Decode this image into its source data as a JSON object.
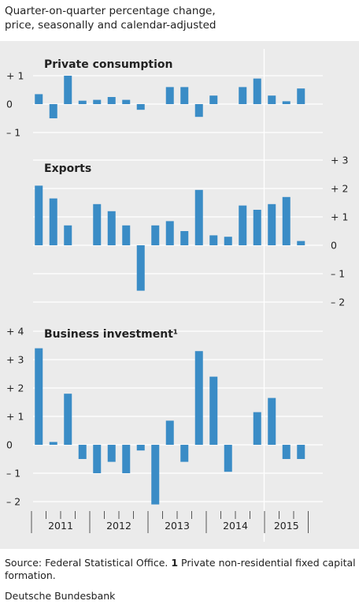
{
  "subtitle_line1": "Quarter-on-quarter percentage change,",
  "subtitle_line2": "price, seasonally and calendar-adjusted",
  "chart_data": [
    {
      "type": "bar",
      "title": "Private consumption",
      "axis_side": "left",
      "ylim": [
        -1.2,
        1.25
      ],
      "ticks": [
        {
          "v": 1,
          "label": "+ 1"
        },
        {
          "v": 0,
          "label": "0"
        },
        {
          "v": -1,
          "label": "– 1"
        }
      ],
      "values": [
        0.35,
        -0.5,
        1.0,
        0.12,
        0.15,
        0.25,
        0.15,
        -0.2,
        null,
        0.6,
        0.6,
        -0.45,
        0.3,
        null,
        0.6,
        0.9,
        0.3,
        0.1,
        0.55
      ]
    },
    {
      "type": "bar",
      "title": "Exports",
      "axis_side": "right",
      "ylim": [
        -2.2,
        3.2
      ],
      "ticks": [
        {
          "v": 3,
          "label": "+ 3"
        },
        {
          "v": 2,
          "label": "+ 2"
        },
        {
          "v": 1,
          "label": "+ 1"
        },
        {
          "v": 0,
          "label": "0"
        },
        {
          "v": -1,
          "label": "– 1"
        },
        {
          "v": -2,
          "label": "– 2"
        }
      ],
      "values": [
        2.1,
        1.65,
        0.7,
        null,
        1.45,
        1.2,
        0.7,
        -1.6,
        0.7,
        0.85,
        0.5,
        1.95,
        0.35,
        0.3,
        1.4,
        1.25,
        1.45,
        1.7,
        0.15
      ]
    },
    {
      "type": "bar",
      "title": "Business investment¹",
      "axis_side": "left",
      "ylim": [
        -2.3,
        4.2
      ],
      "ticks": [
        {
          "v": 4,
          "label": "+ 4"
        },
        {
          "v": 3,
          "label": "+ 3"
        },
        {
          "v": 2,
          "label": "+ 2"
        },
        {
          "v": 1,
          "label": "+ 1"
        },
        {
          "v": 0,
          "label": "0"
        },
        {
          "v": -1,
          "label": "– 1"
        },
        {
          "v": -2,
          "label": "– 2"
        }
      ],
      "values": [
        3.4,
        0.1,
        1.8,
        -0.5,
        -1.0,
        -0.6,
        -1.0,
        -0.2,
        -2.1,
        0.85,
        -0.6,
        3.3,
        2.4,
        -0.95,
        null,
        1.15,
        1.65,
        -0.5,
        -0.5
      ]
    }
  ],
  "x_axis": {
    "year_labels": [
      "2011",
      "2012",
      "2013",
      "2014",
      "2015"
    ],
    "year_starts": [
      0,
      4,
      8,
      12,
      16
    ],
    "quarters_per_year": [
      4,
      4,
      4,
      4,
      3
    ]
  },
  "colors": {
    "bar": "#3a8cc6",
    "background": "#ebebeb",
    "grid": "#ffffff",
    "text": "#222222"
  },
  "footer": {
    "source_prefix": "Source: Federal Statistical Office. ",
    "note_marker": "1",
    "note_text": " Private non-residential fixed capital formation.",
    "brand": "Deutsche Bundesbank"
  }
}
